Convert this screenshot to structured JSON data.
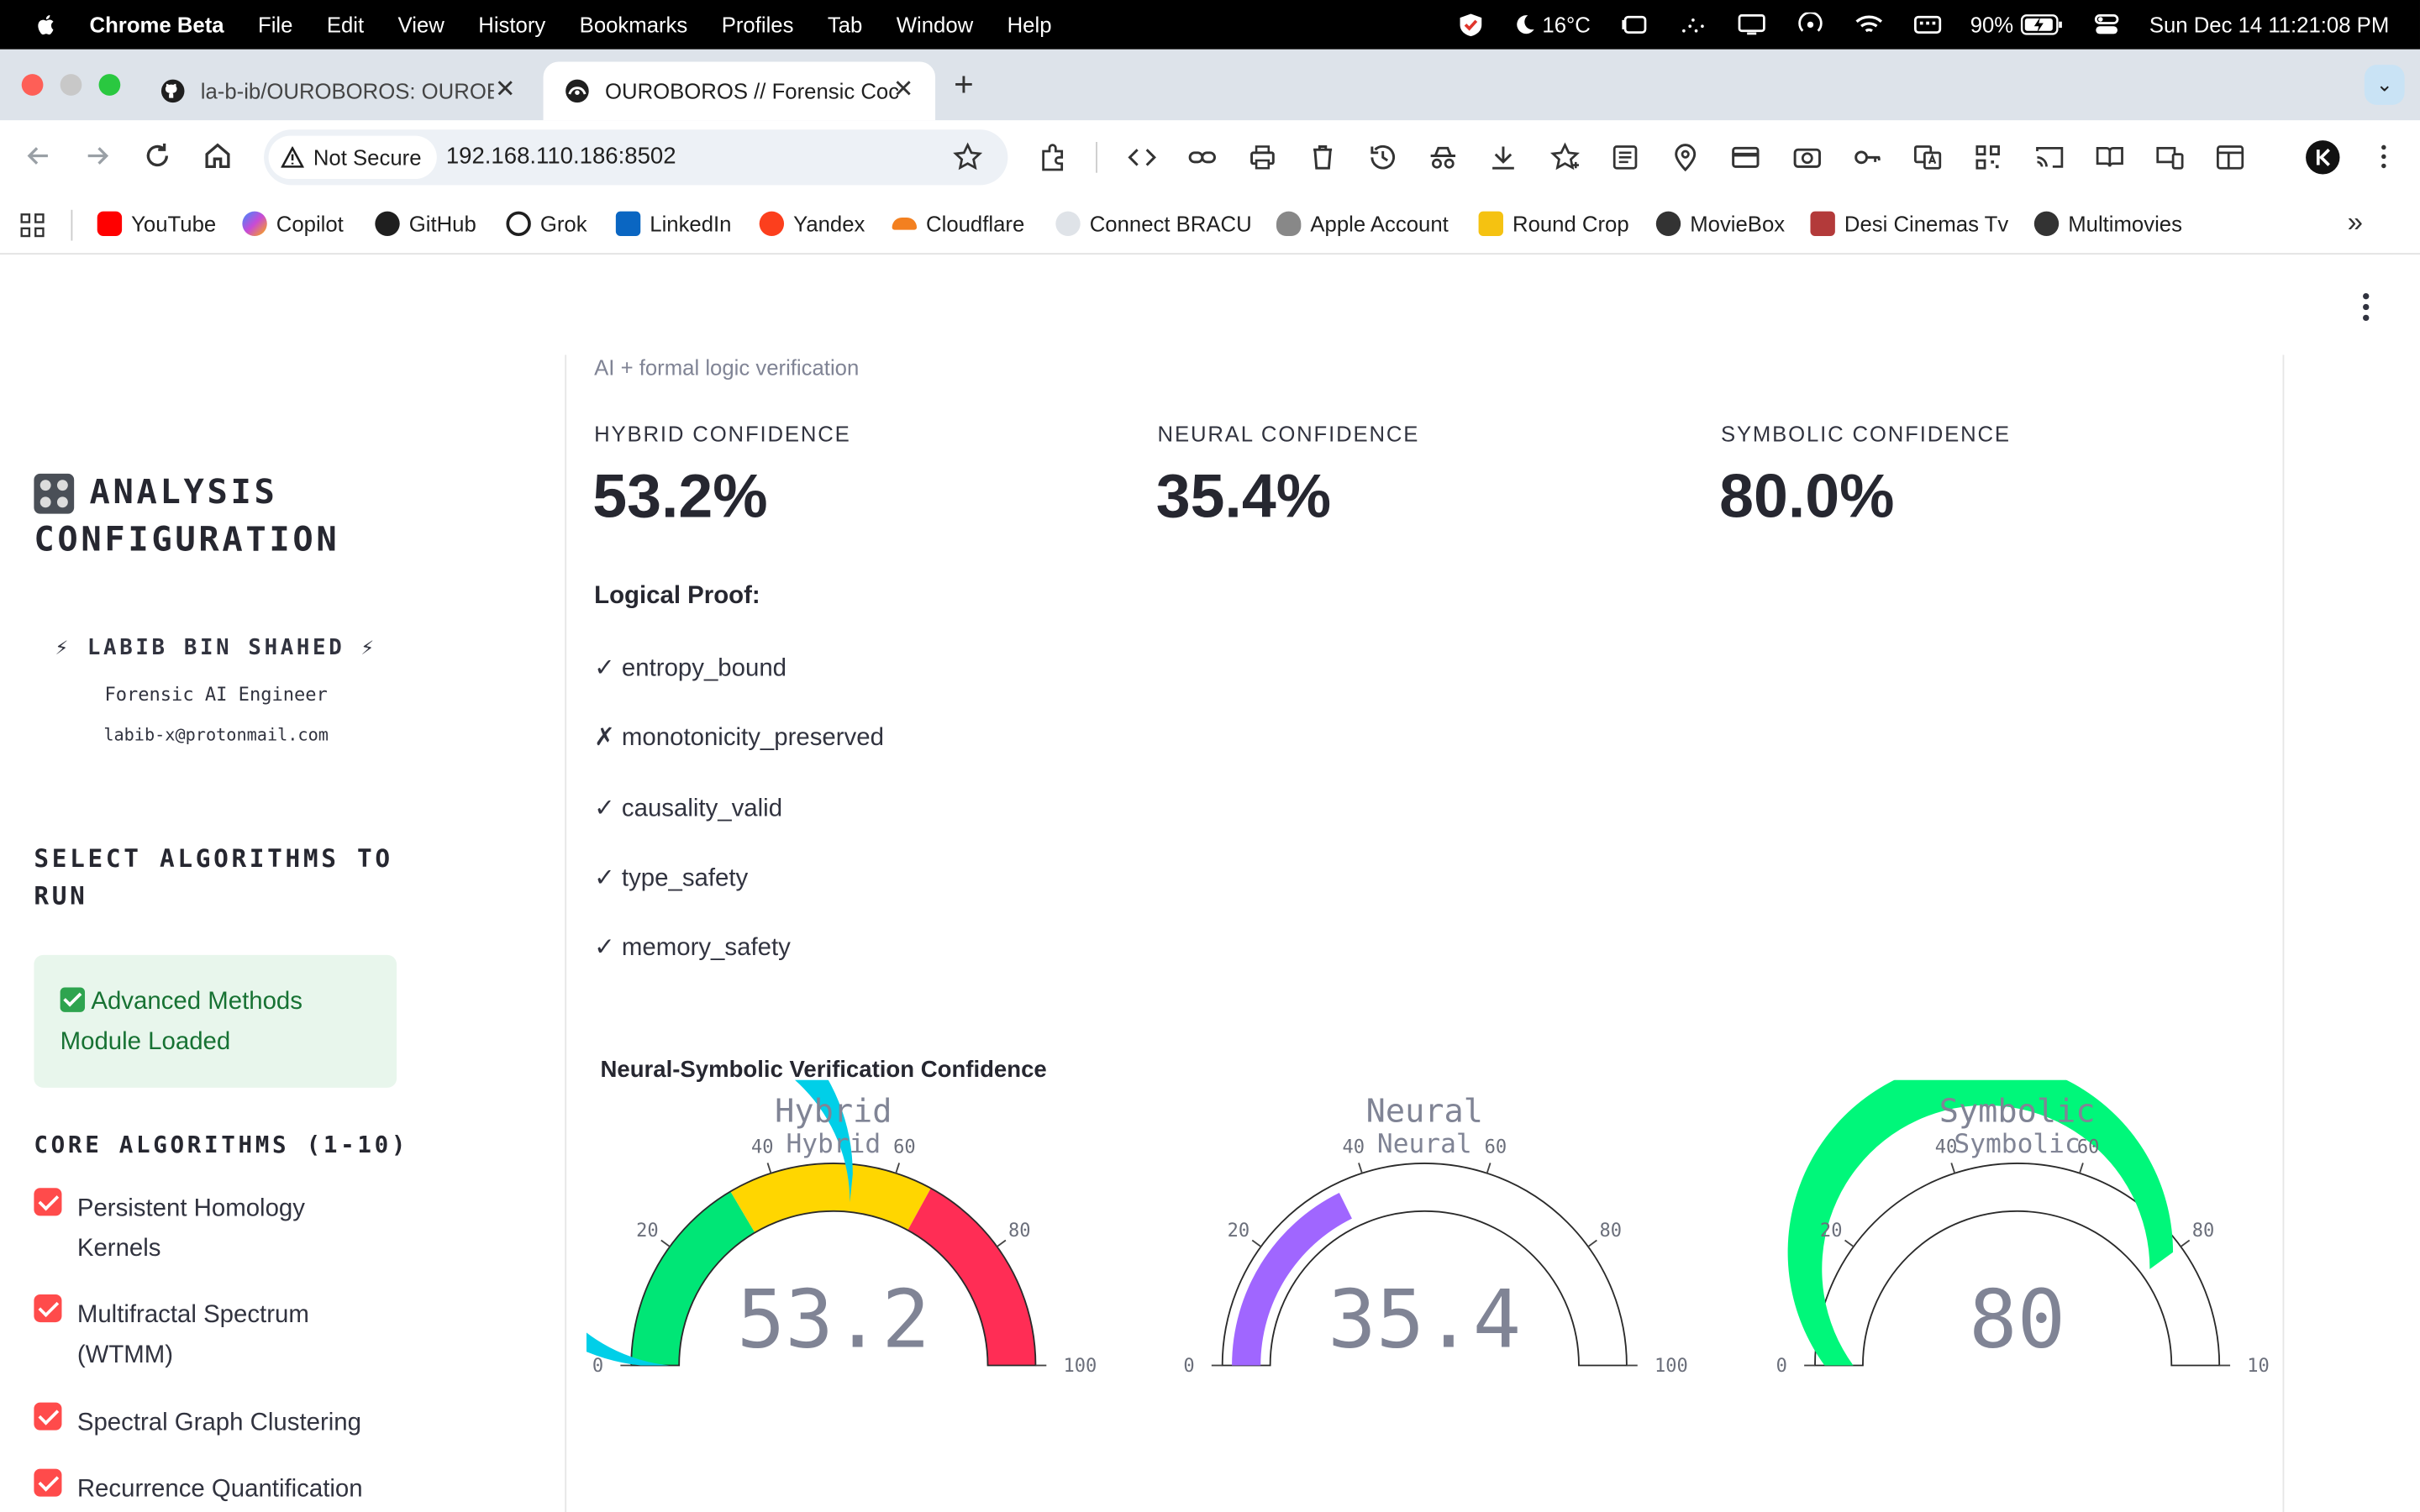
{
  "menubar": {
    "app": "Chrome Beta",
    "items": [
      "File",
      "Edit",
      "View",
      "History",
      "Bookmarks",
      "Profiles",
      "Tab",
      "Window",
      "Help"
    ],
    "weather": "16°C",
    "battery": "90%",
    "datetime": "Sun Dec 14  11:21:08 PM"
  },
  "tabs": [
    {
      "title": "la-b-ib/OUROBOROS: OUROB"
    },
    {
      "title": "OUROBOROS // Forensic Cock"
    }
  ],
  "toolbar": {
    "not_secure": "Not Secure",
    "url": "192.168.110.186:8502"
  },
  "bookmarks": [
    {
      "label": "YouTube",
      "color": "#ff0000"
    },
    {
      "label": "Copilot",
      "color": "#6a5bd6"
    },
    {
      "label": "GitHub",
      "color": "#1f1f1f"
    },
    {
      "label": "Grok",
      "color": "#1f1f1f"
    },
    {
      "label": "LinkedIn",
      "color": "#0a66c2"
    },
    {
      "label": "Yandex",
      "color": "#fc3f1d"
    },
    {
      "label": "Cloudflare",
      "color": "#f38020"
    },
    {
      "label": "Connect BRACU",
      "color": "#9aa0a6"
    },
    {
      "label": "Apple Account",
      "color": "#555555"
    },
    {
      "label": "Round Crop",
      "color": "#f5c211"
    },
    {
      "label": "MovieBox",
      "color": "#333333"
    },
    {
      "label": "Desi Cinemas Tv",
      "color": "#b33a3a"
    },
    {
      "label": "Multimovies",
      "color": "#333333"
    }
  ],
  "sidebar": {
    "title": "ANALYSIS CONFIGURATION",
    "profile_name": "⚡ LABIB BIN SHAHED ⚡",
    "profile_role": "Forensic AI Engineer",
    "profile_email": "labib-x@protonmail.com",
    "select_heading": "SELECT ALGORITHMS TO RUN",
    "success_msg": "Advanced Methods Module Loaded",
    "core_heading": "CORE ALGORITHMS (1-10)",
    "algorithms": [
      "Persistent Homology Kernels",
      "Multifractal Spectrum (WTMM)",
      "Spectral Graph Clustering",
      "Recurrence Quantification"
    ]
  },
  "main": {
    "caption": "AI + formal logic verification",
    "metrics": [
      {
        "label": "HYBRID CONFIDENCE",
        "value": "53.2%"
      },
      {
        "label": "NEURAL CONFIDENCE",
        "value": "35.4%"
      },
      {
        "label": "SYMBOLIC CONFIDENCE",
        "value": "80.0%"
      }
    ],
    "proof_title": "Logical Proof:",
    "proofs": [
      "✓ entropy_bound",
      "✗ monotonicity_preserved",
      "✓ causality_valid",
      "✓ type_safety",
      "✓ memory_safety"
    ]
  },
  "chart_data": {
    "type": "gauge",
    "title": "Neural-Symbolic Verification Confidence",
    "gauges": [
      {
        "title": "Hybrid",
        "subtitle": "Hybrid",
        "value": 53.2,
        "display": "53.2",
        "range": [
          0,
          100
        ],
        "ticks": [
          "0",
          "20",
          "40",
          "60",
          "80",
          "100"
        ],
        "bar_color": "#00cfe8",
        "steps": [
          {
            "range": [
              0,
              33
            ],
            "color": "#00e676"
          },
          {
            "range": [
              33,
              66
            ],
            "color": "#ffd600"
          },
          {
            "range": [
              66,
              100
            ],
            "color": "#ff2d55"
          }
        ]
      },
      {
        "title": "Neural",
        "subtitle": "Neural",
        "value": 35.4,
        "display": "35.4",
        "range": [
          0,
          100
        ],
        "ticks": [
          "0",
          "20",
          "40",
          "60",
          "80",
          "100"
        ],
        "bar_color": "#a066ff",
        "steps": []
      },
      {
        "title": "Symbolic",
        "subtitle": "Symbolic",
        "value": 80,
        "display": "80",
        "range": [
          0,
          100
        ],
        "ticks": [
          "0",
          "20",
          "40",
          "60",
          "80",
          "10"
        ],
        "bar_color": "#00f77a",
        "steps": []
      }
    ]
  }
}
